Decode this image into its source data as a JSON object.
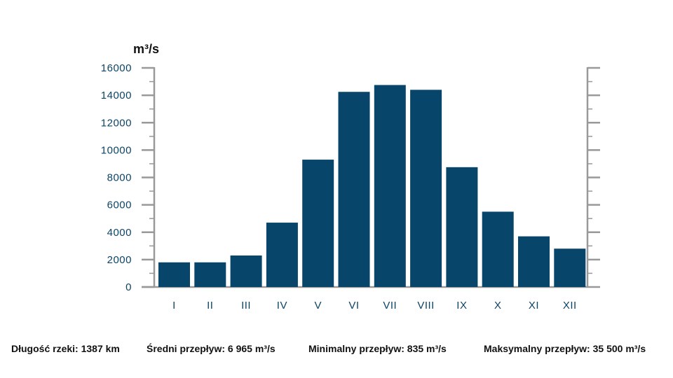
{
  "chart_data": {
    "type": "bar",
    "title": "",
    "xlabel": "",
    "ylabel": "m³/s",
    "ylim": [
      0,
      16000
    ],
    "yticks": [
      "0",
      "2000",
      "4000",
      "6000",
      "8000",
      "10000",
      "12000",
      "14000",
      "16000"
    ],
    "categories": [
      "I",
      "II",
      "III",
      "IV",
      "V",
      "VI",
      "VII",
      "VIII",
      "IX",
      "X",
      "XI",
      "XII"
    ],
    "values": [
      1800,
      1800,
      2300,
      4700,
      9300,
      14250,
      14750,
      14400,
      8750,
      5500,
      3700,
      2800
    ],
    "bar_color": "#07456a",
    "axis_color": "#999999",
    "grid": false,
    "legend": "none"
  },
  "footer": {
    "length": "Długość rzeki: 1387 km",
    "mean_flow": "Średni przepływ: 6 965 m³/s",
    "min_flow": "Minimalny przepływ: 835 m³/s",
    "max_flow": "Maksymalny przepływ: 35 500 m³/s"
  }
}
